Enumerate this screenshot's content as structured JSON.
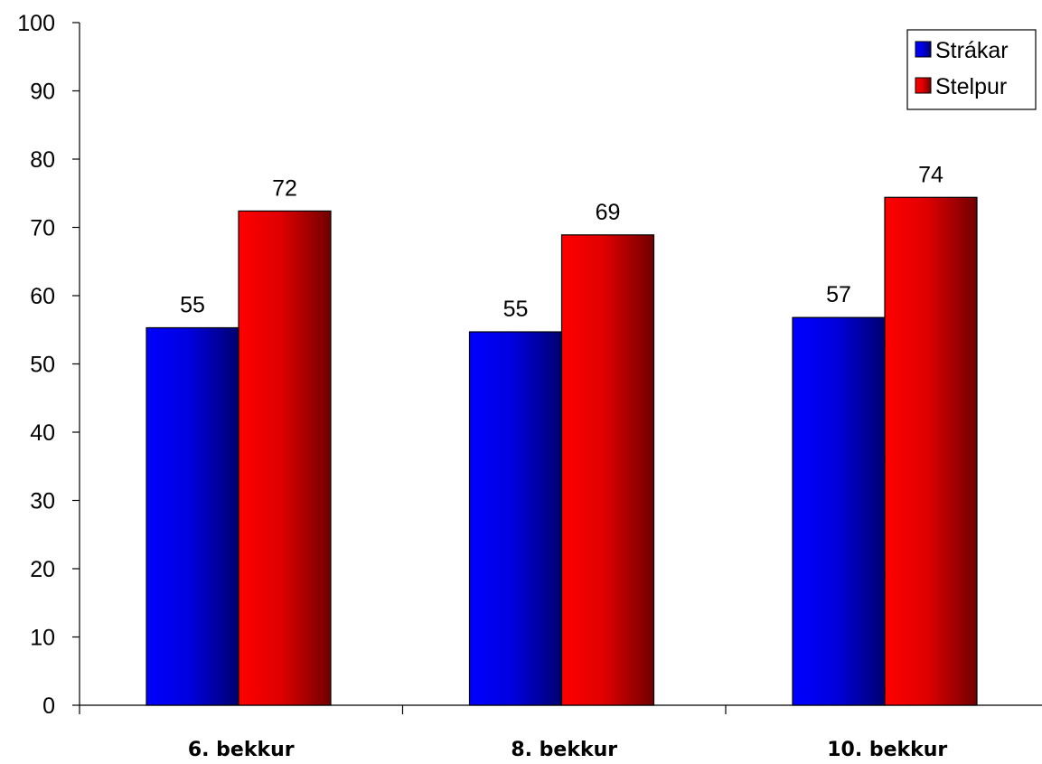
{
  "chart_data": {
    "type": "bar",
    "categories": [
      "6. bekkur",
      "8. bekkur",
      "10. bekkur"
    ],
    "series": [
      {
        "name": "Strákar",
        "values": [
          55.3,
          54.7,
          56.8
        ],
        "labels": [
          "55",
          "55",
          "57"
        ],
        "color": "#0000ff"
      },
      {
        "name": "Stelpur",
        "values": [
          72.4,
          68.9,
          74.4
        ],
        "labels": [
          "72",
          "69",
          "74"
        ],
        "color": "#ff0000"
      }
    ],
    "yticks": [
      "0",
      "10",
      "20",
      "30",
      "40",
      "50",
      "60",
      "70",
      "80",
      "90",
      "100"
    ],
    "ylim": [
      0,
      100
    ],
    "grid": false,
    "legend_position": "top-right"
  }
}
